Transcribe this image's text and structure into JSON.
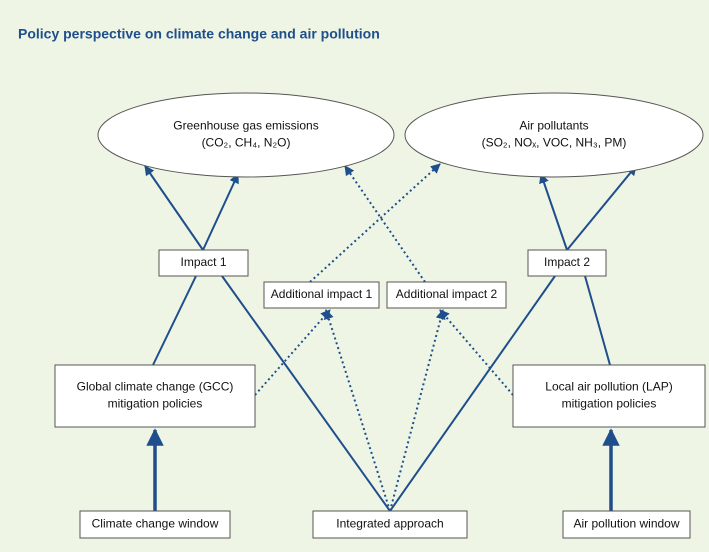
{
  "title": "Policy perspective on climate change and air pollution",
  "nodes": [
    {
      "lines": [
        "Greenhouse gas emissions",
        "(CO₂, CH₄, N₂O)"
      ]
    },
    {
      "lines": [
        "Air pollutants",
        "(SO₂, NOₓ, VOC, NH₃, PM)"
      ]
    },
    {
      "lines": [
        "Impact 1"
      ]
    },
    {
      "lines": [
        "Additional impact 1"
      ]
    },
    {
      "lines": [
        "Additional impact 2"
      ]
    },
    {
      "lines": [
        "Impact 2"
      ]
    },
    {
      "lines": [
        "Global climate change (GCC)",
        "mitigation policies"
      ]
    },
    {
      "lines": [
        "Local air pollution (LAP)",
        "mitigation policies"
      ]
    },
    {
      "lines": [
        "Climate change window"
      ]
    },
    {
      "lines": [
        "Integrated approach"
      ]
    },
    {
      "lines": [
        "Air pollution window"
      ]
    }
  ]
}
